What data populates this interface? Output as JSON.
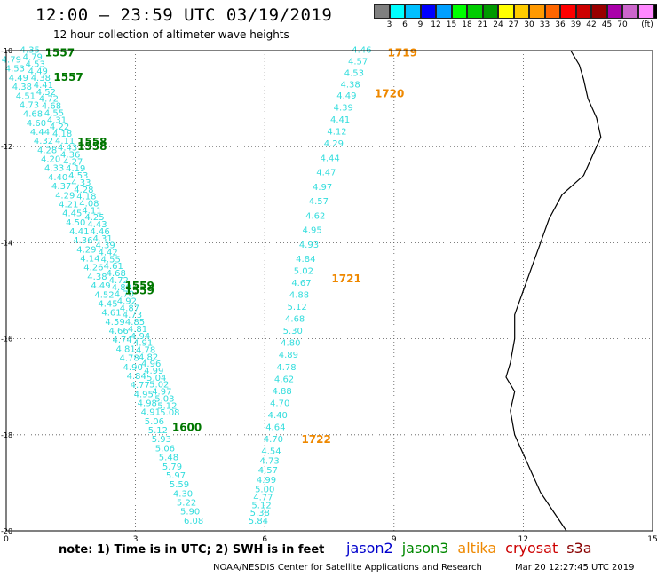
{
  "header": {
    "title": "12:00 – 23:59 UTC 03/19/2019",
    "subtitle": "12 hour collection of altimeter wave heights"
  },
  "legend": {
    "colors": [
      "#808080",
      "#00ffff",
      "#00bfff",
      "#0000ff",
      "#00a0ff",
      "#00ff00",
      "#00cc00",
      "#009900",
      "#ffff00",
      "#ffcc00",
      "#ff9900",
      "#ff6600",
      "#ff0000",
      "#cc0000",
      "#990000",
      "#aa00aa",
      "#cc66cc",
      "#ff88ff",
      "#000000"
    ],
    "labels": [
      "3",
      "6",
      "9",
      "12",
      "15",
      "18",
      "21",
      "24",
      "27",
      "30",
      "33",
      "36",
      "39",
      "42",
      "45",
      "70",
      "(ft)"
    ],
    "label_positions": [
      1,
      2,
      3,
      4,
      5,
      6,
      7,
      8,
      9,
      10,
      11,
      12,
      13,
      14,
      15,
      16,
      17.6
    ]
  },
  "axes": {
    "x_ticks": [
      "0",
      "3",
      "6",
      "9",
      "12",
      "15"
    ],
    "x_values": [
      0,
      3,
      6,
      9,
      12,
      15
    ],
    "y_ticks": [
      "-10",
      "-12",
      "-14",
      "-16",
      "-18",
      "-20"
    ],
    "y_values": [
      -10,
      -12,
      -14,
      -16,
      -18,
      -20
    ]
  },
  "map_data": {
    "lon_range": [
      0,
      15
    ],
    "lat_range": [
      -20,
      -10
    ],
    "coastline": [
      [
        13.1,
        -10.0
      ],
      [
        13.3,
        -10.3
      ],
      [
        13.4,
        -10.6
      ],
      [
        13.5,
        -11.0
      ],
      [
        13.7,
        -11.4
      ],
      [
        13.8,
        -11.8
      ],
      [
        13.6,
        -12.2
      ],
      [
        13.4,
        -12.6
      ],
      [
        12.9,
        -13.0
      ],
      [
        12.6,
        -13.5
      ],
      [
        12.4,
        -14.0
      ],
      [
        12.2,
        -14.5
      ],
      [
        12.0,
        -15.0
      ],
      [
        11.8,
        -15.5
      ],
      [
        11.8,
        -16.0
      ],
      [
        11.7,
        -16.5
      ],
      [
        11.6,
        -16.8
      ],
      [
        11.8,
        -17.1
      ],
      [
        11.7,
        -17.5
      ],
      [
        11.8,
        -18.0
      ],
      [
        12.0,
        -18.4
      ],
      [
        12.2,
        -18.8
      ],
      [
        12.4,
        -19.2
      ],
      [
        12.7,
        -19.6
      ],
      [
        13.0,
        -20.0
      ]
    ],
    "tracks": [
      {
        "name": "jason3 track A",
        "color": "#33dddd",
        "start": [
          0.35,
          -10.0
        ],
        "end": [
          4.3,
          -19.9
        ],
        "values": [
          "4.35",
          "4.79",
          "4.53",
          "4.49",
          "4.38",
          "4.41",
          "4.52",
          "4.72",
          "4.68",
          "4.55",
          "4.31",
          "4.22",
          "4.18",
          "4.11",
          "4.43",
          "4.36",
          "4.27",
          "4.19",
          "4.53",
          "4.33",
          "4.28",
          "4.18",
          "4.08",
          "4.11",
          "4.25",
          "4.43",
          "4.46",
          "4.31",
          "4.39",
          "4.42",
          "4.55",
          "4.61",
          "4.68",
          "4.72",
          "4.80",
          "4.70",
          "4.92",
          "4.87",
          "4.73",
          "4.85",
          "4.81",
          "4.94",
          "4.91",
          "4.78",
          "4.82",
          "4.96",
          "4.99",
          "5.04",
          "5.02",
          "4.97",
          "5.03",
          "5.12",
          "5.08"
        ]
      },
      {
        "name": "jason3 track B",
        "color": "#33dddd",
        "start": [
          0.1,
          -10.2
        ],
        "end": [
          4.7,
          -19.9
        ],
        "values": [
          "4.79",
          "4.53",
          "4.49",
          "4.38",
          "4.51",
          "4.73",
          "4.68",
          "4.60",
          "4.44",
          "4.32",
          "4.28",
          "4.20",
          "4.33",
          "4.40",
          "4.37",
          "4.29",
          "4.21",
          "4.45",
          "4.50",
          "4.41",
          "4.36",
          "4.29",
          "4.14",
          "4.26",
          "4.38",
          "4.49",
          "4.52",
          "4.45",
          "4.61",
          "4.59",
          "4.66",
          "4.74",
          "4.81",
          "4.78",
          "4.90",
          "4.84",
          "4.77",
          "4.95",
          "4.98",
          "4.91",
          "5.06",
          "5.12",
          "5.93",
          "5.06",
          "5.48",
          "5.79",
          "5.97",
          "5.59",
          "4.30",
          "5.22",
          "5.90",
          "6.08"
        ]
      },
      {
        "name": "altika track",
        "color": "#33dddd",
        "values": [
          "4.46",
          "4.57",
          "4.53",
          "4.38",
          "4.49",
          "4.39",
          "4.41",
          "4.12",
          "4.29",
          "4.44",
          "4.47",
          "4.97",
          "4.57",
          "4.62",
          "4.95",
          "4.93",
          "4.84",
          "5.02",
          "4.67",
          "4.88",
          "5.12",
          "4.68",
          "5.30",
          "4.80",
          "4.89",
          "4.78",
          "4.62",
          "4.88",
          "4.70",
          "4.40",
          "4.64",
          "4.70",
          "4.54",
          "4.73",
          "4.57",
          "4.99",
          "5.00",
          "4.77",
          "5.12",
          "5.38",
          "5.84"
        ]
      }
    ],
    "time_labels": [
      {
        "text": "1557",
        "color": "#007700",
        "lon": 0.9,
        "lat": -10.05
      },
      {
        "text": "1557",
        "color": "#007700",
        "lon": 1.1,
        "lat": -10.55
      },
      {
        "text": "1558",
        "color": "#007700",
        "lon": 1.65,
        "lat": -11.9
      },
      {
        "text": "1558",
        "color": "#007700",
        "lon": 1.65,
        "lat": -12.0
      },
      {
        "text": "1559",
        "color": "#007700",
        "lon": 2.75,
        "lat": -14.9
      },
      {
        "text": "1559",
        "color": "#007700",
        "lon": 2.75,
        "lat": -15.0
      },
      {
        "text": "1600",
        "color": "#007700",
        "lon": 3.85,
        "lat": -17.85
      },
      {
        "text": "1719",
        "color": "#ee8800",
        "lon": 8.85,
        "lat": -10.05
      },
      {
        "text": "1720",
        "color": "#ee8800",
        "lon": 8.55,
        "lat": -10.9
      },
      {
        "text": "1721",
        "color": "#ee8800",
        "lon": 7.55,
        "lat": -14.75
      },
      {
        "text": "1722",
        "color": "#ee8800",
        "lon": 6.85,
        "lat": -18.1
      }
    ]
  },
  "footer": {
    "note": "note:  1) Time is in UTC;  2) SWH is in feet",
    "satellites": [
      {
        "name": "jason2",
        "color": "#0000cc"
      },
      {
        "name": "jason3",
        "color": "#008800"
      },
      {
        "name": "altika",
        "color": "#ee8800"
      },
      {
        "name": "cryosat",
        "color": "#cc0000"
      },
      {
        "name": "s3a",
        "color": "#880000"
      }
    ],
    "credit": "NOAA/NESDIS Center for Satellite Applications and Research",
    "timestamp": "Mar 20 12:27:45 UTC 2019"
  }
}
